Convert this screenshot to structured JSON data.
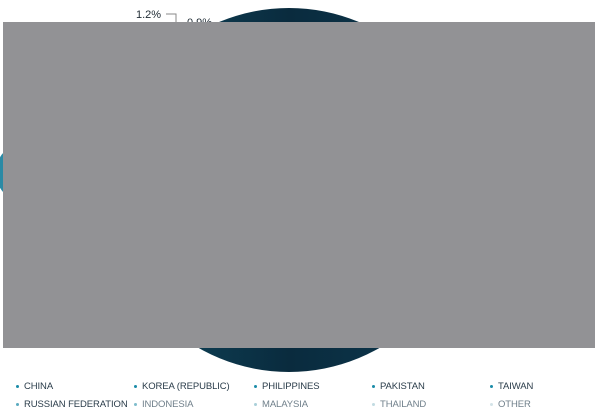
{
  "chart_data": {
    "type": "pie",
    "title": "",
    "visible_data_labels": [
      {
        "text": "1.2%",
        "value": 1.2
      },
      {
        "text": "0.9%",
        "value": 0.9
      }
    ],
    "categories": [
      "CHINA",
      "KOREA (REPUBLIC)",
      "PHILIPPINES",
      "PAKISTAN",
      "TAIWAN",
      "RUSSIAN FEDERATION",
      "INDONESIA",
      "MALAYSIA",
      "THAILAND",
      "OTHER"
    ],
    "legend_position": "bottom",
    "obscured": true
  },
  "legend": {
    "items": [
      {
        "label": "CHINA",
        "color": "#1a8ba8"
      },
      {
        "label": "KOREA (REPUBLIC)",
        "color": "#1a8ba8"
      },
      {
        "label": "PHILIPPINES",
        "color": "#1a8ba8"
      },
      {
        "label": "PAKISTAN",
        "color": "#1a8ba8"
      },
      {
        "label": "TAIWAN",
        "color": "#1a8ba8"
      },
      {
        "label": "RUSSIAN FEDERATION",
        "color": "#5aaabf"
      },
      {
        "label": "INDONESIA",
        "color": "#7fbccc"
      },
      {
        "label": "MALAYSIA",
        "color": "#a9cfd9"
      },
      {
        "label": "THAILAND",
        "color": "#c2dbe2"
      },
      {
        "label": "OTHER",
        "color": "#d3e3e8"
      }
    ]
  },
  "colors": {
    "overlay": "#929295",
    "pie_dark": "#0a2b3e",
    "pie_mid": "#0f4a60",
    "pie_rim": "#2b8aa5",
    "leader": "#8a8a8a"
  }
}
